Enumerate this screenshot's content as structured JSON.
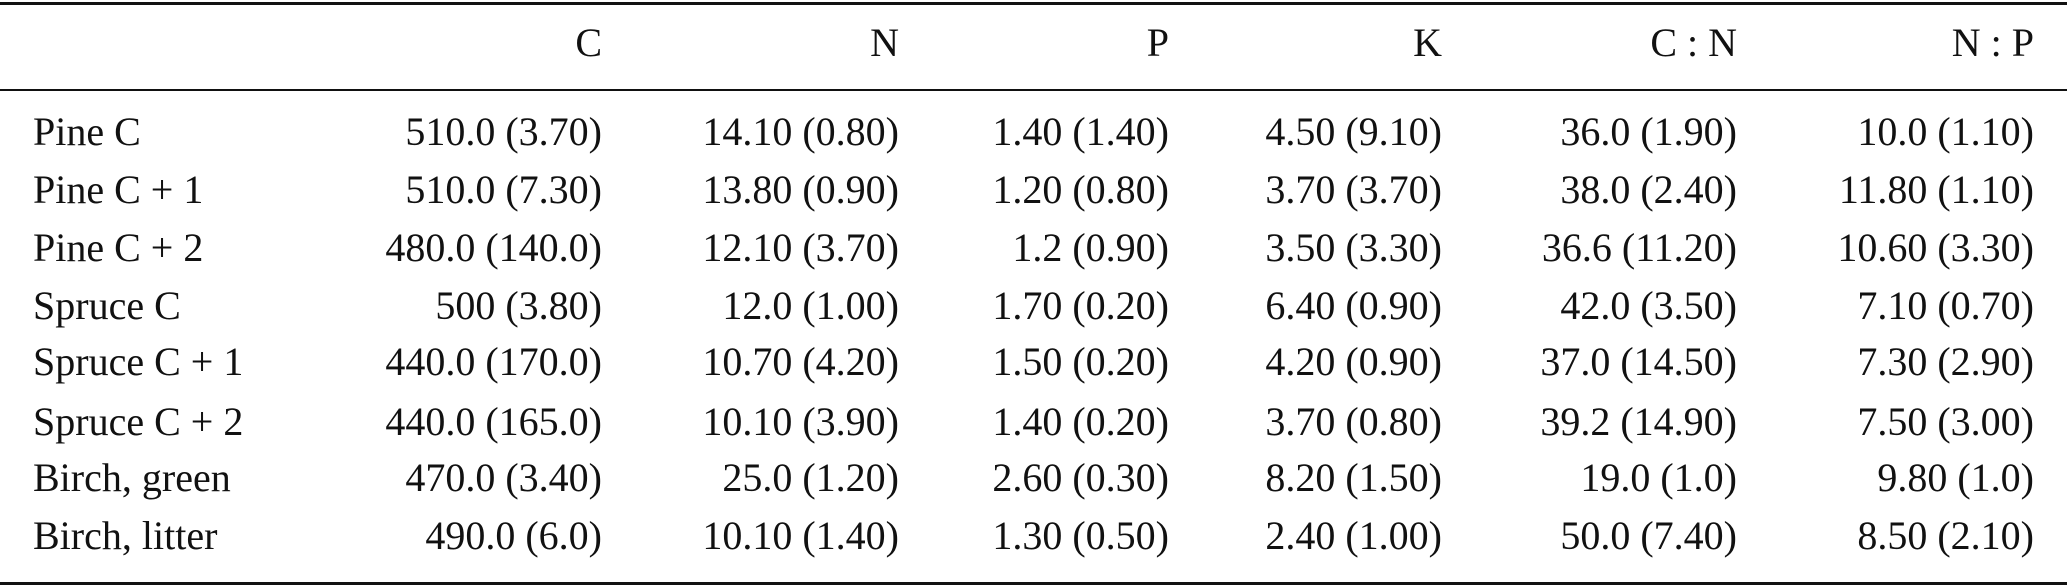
{
  "table": {
    "columns": [
      "C",
      "N",
      "P",
      "K",
      "C : N",
      "N : P"
    ],
    "rows": [
      {
        "label": "Pine C",
        "cells": [
          "510.0 (3.70)",
          "14.10 (0.80)",
          "1.40 (1.40)",
          "4.50 (9.10)",
          "36.0 (1.90)",
          "10.0 (1.10)"
        ]
      },
      {
        "label": "Pine C + 1",
        "cells": [
          "510.0 (7.30)",
          "13.80 (0.90)",
          "1.20 (0.80)",
          "3.70 (3.70)",
          "38.0 (2.40)",
          "11.80 (1.10)"
        ]
      },
      {
        "label": "Pine C + 2",
        "cells": [
          "480.0 (140.0)",
          "12.10 (3.70)",
          "1.2 (0.90)",
          "3.50 (3.30)",
          "36.6 (11.20)",
          "10.60 (3.30)"
        ]
      },
      {
        "label": "Spruce C",
        "cells": [
          "500 (3.80)",
          "12.0 (1.00)",
          "1.70 (0.20)",
          "6.40 (0.90)",
          "42.0 (3.50)",
          "7.10 (0.70)"
        ]
      },
      {
        "label": "Spruce C + 1",
        "cells": [
          "440.0 (170.0)",
          "10.70 (4.20)",
          "1.50 (0.20)",
          "4.20 (0.90)",
          "37.0 (14.50)",
          "7.30 (2.90)"
        ]
      },
      {
        "label": "Spruce C + 2",
        "cells": [
          "440.0 (165.0)",
          "10.10 (3.90)",
          "1.40 (0.20)",
          "3.70 (0.80)",
          "39.2 (14.90)",
          "7.50 (3.00)"
        ]
      },
      {
        "label": "Birch, green",
        "cells": [
          "470.0 (3.40)",
          "25.0 (1.20)",
          "2.60 (0.30)",
          "8.20 (1.50)",
          "19.0 (1.0)",
          "9.80 (1.0)"
        ]
      },
      {
        "label": "Birch, litter",
        "cells": [
          "490.0 (6.0)",
          "10.10 (1.40)",
          "1.30 (0.50)",
          "2.40 (1.00)",
          "50.0 (7.40)",
          "8.50 (2.10)"
        ]
      }
    ]
  }
}
